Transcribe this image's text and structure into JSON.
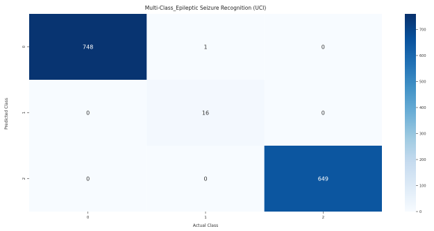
{
  "chart_data": {
    "type": "heatmap",
    "title": "Multi-Class_Epileptic Seizure Recognition (UCI)",
    "xlabel": "Actual Class",
    "ylabel": "Predicted Class",
    "x_categories": [
      "0",
      "1",
      "2"
    ],
    "y_categories": [
      "0",
      "1",
      "2"
    ],
    "values": [
      [
        748,
        1,
        0
      ],
      [
        0,
        16,
        0
      ],
      [
        0,
        0,
        649
      ]
    ],
    "colorbar": {
      "range": [
        0,
        760
      ],
      "ticks": [
        0,
        100,
        200,
        300,
        400,
        500,
        600,
        700
      ],
      "colormap": "Blues",
      "low_color": "#f7fbff",
      "high_color": "#08306b"
    },
    "grid": false,
    "legend": "colorbar-right"
  }
}
